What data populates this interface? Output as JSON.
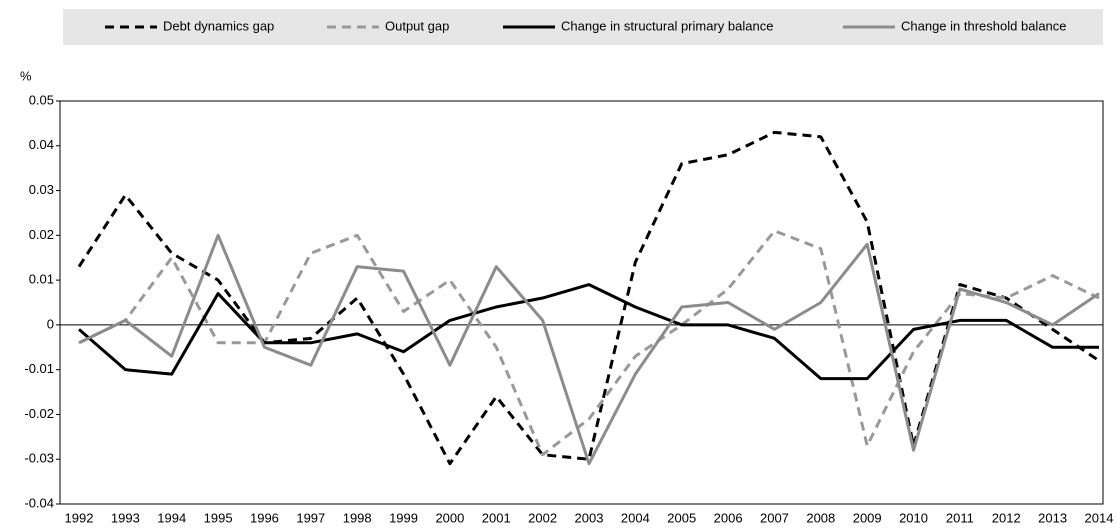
{
  "chart_data": {
    "type": "line",
    "y_label": "%",
    "categories": [
      "1992",
      "1993",
      "1994",
      "1995",
      "1996",
      "1997",
      "1998",
      "1999",
      "2000",
      "2001",
      "2002",
      "2003",
      "2004",
      "2005",
      "2006",
      "2007",
      "2008",
      "2009",
      "2010",
      "2011",
      "2012",
      "2013",
      "2014"
    ],
    "series": [
      {
        "name": "Debt dynamics gap",
        "color": "#000000",
        "dashed": true,
        "values": [
          0.013,
          0.029,
          0.016,
          0.01,
          -0.004,
          -0.003,
          0.006,
          -0.011,
          -0.031,
          -0.016,
          -0.029,
          -0.03,
          0.014,
          0.036,
          0.038,
          0.043,
          0.042,
          0.023,
          -0.027,
          0.009,
          0.006,
          -0.001,
          -0.008
        ]
      },
      {
        "name": "Output gap",
        "color": "#999999",
        "dashed": true,
        "values": [
          -0.004,
          0.001,
          0.015,
          -0.004,
          -0.004,
          0.016,
          0.02,
          0.003,
          0.01,
          -0.005,
          -0.029,
          -0.021,
          -0.007,
          0.0,
          0.008,
          0.021,
          0.017,
          -0.027,
          -0.006,
          0.007,
          0.006,
          0.011,
          0.006
        ]
      },
      {
        "name": "Change in structural primary balance",
        "color": "#000000",
        "dashed": false,
        "values": [
          -0.001,
          -0.01,
          -0.011,
          0.007,
          -0.004,
          -0.004,
          -0.002,
          -0.006,
          0.001,
          0.004,
          0.006,
          0.009,
          0.004,
          0.0,
          0.0,
          -0.003,
          -0.012,
          -0.012,
          -0.001,
          0.001,
          0.001,
          -0.005,
          -0.005
        ]
      },
      {
        "name": "Change in threshold balance",
        "color": "#8c8c8c",
        "dashed": false,
        "values": [
          -0.004,
          0.001,
          -0.007,
          0.02,
          -0.005,
          -0.009,
          0.013,
          0.012,
          -0.009,
          0.013,
          0.001,
          -0.031,
          -0.011,
          0.004,
          0.005,
          -0.001,
          0.005,
          0.018,
          -0.028,
          0.008,
          0.005,
          0.0,
          0.007
        ]
      }
    ],
    "ylim": [
      -0.04,
      0.05
    ],
    "yticks": [
      0.05,
      0.04,
      0.03,
      0.02,
      0.01,
      0,
      -0.01,
      -0.02,
      -0.03,
      -0.04
    ],
    "grid": false,
    "legend": "top"
  }
}
